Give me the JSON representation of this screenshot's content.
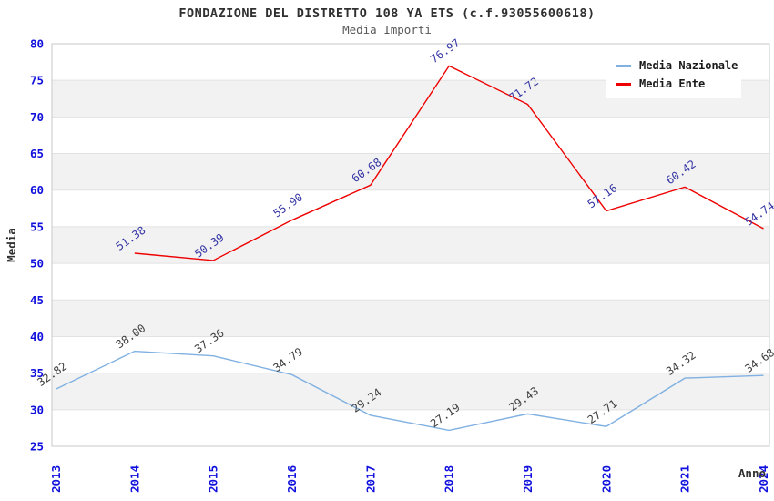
{
  "header": {
    "title": "FONDAZIONE DEL DISTRETTO 108 YA ETS (c.f.93055600618)",
    "subtitle": "Media Importi"
  },
  "chart_data": {
    "type": "line",
    "categories": [
      "2013",
      "2014",
      "2015",
      "2016",
      "2017",
      "2018",
      "2019",
      "2020",
      "2021",
      "2024"
    ],
    "series": [
      {
        "name": "Media Nazionale",
        "color": "#80b1e2",
        "label_color": "#404040",
        "values": [
          32.82,
          38.0,
          37.36,
          34.79,
          29.24,
          27.19,
          29.43,
          27.71,
          34.32,
          34.68
        ]
      },
      {
        "name": "Media Ente",
        "color": "#ee0000",
        "label_color": "#3535a5",
        "values": [
          null,
          51.38,
          50.39,
          55.9,
          60.68,
          76.97,
          71.72,
          57.16,
          60.42,
          54.74
        ]
      }
    ],
    "xlabel": "Anno",
    "ylabel": "Media",
    "ylim": [
      25,
      80
    ],
    "ytick_step": 5,
    "yticks": [
      25,
      30,
      35,
      40,
      45,
      50,
      55,
      60,
      65,
      70,
      75,
      80
    ],
    "grid": "horizontal-bands",
    "legend_position": "top-right",
    "colors": {
      "tick_label": "#1111dd",
      "band": "#f2f2f2",
      "grid": "#e2e2e2",
      "border": "#c9c9c9",
      "title": "#303030",
      "subtitle": "#585858"
    }
  }
}
